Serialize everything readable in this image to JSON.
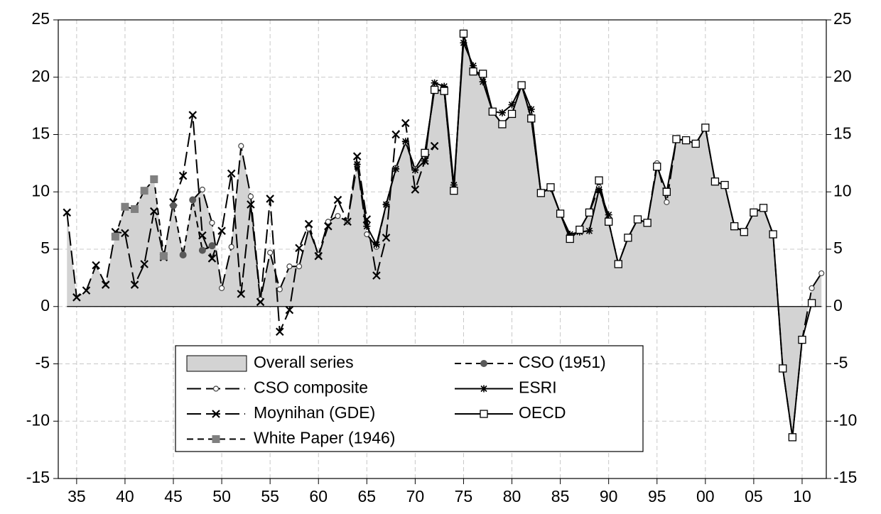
{
  "chart_data": {
    "type": "line",
    "xlim": [
      1933.1,
      2012.5
    ],
    "xticks": [
      {
        "value": 1935,
        "label": "35"
      },
      {
        "value": 1940,
        "label": "40"
      },
      {
        "value": 1945,
        "label": "45"
      },
      {
        "value": 1950,
        "label": "50"
      },
      {
        "value": 1955,
        "label": "55"
      },
      {
        "value": 1960,
        "label": "60"
      },
      {
        "value": 1965,
        "label": "65"
      },
      {
        "value": 1970,
        "label": "70"
      },
      {
        "value": 1975,
        "label": "75"
      },
      {
        "value": 1980,
        "label": "80"
      },
      {
        "value": 1985,
        "label": "85"
      },
      {
        "value": 1990,
        "label": "90"
      },
      {
        "value": 1995,
        "label": "95"
      },
      {
        "value": 2000,
        "label": "00"
      },
      {
        "value": 2005,
        "label": "05"
      },
      {
        "value": 2010,
        "label": "10"
      }
    ],
    "ylim": [
      -15,
      25
    ],
    "yticks": [
      -15,
      -10,
      -5,
      0,
      5,
      10,
      15,
      20,
      25
    ],
    "y2lim": [
      -15,
      25
    ],
    "y2ticks": [
      -15,
      -10,
      -5,
      0,
      5,
      10,
      15,
      20,
      25
    ],
    "grid": true,
    "series": [
      {
        "name": "Overall series",
        "kind": "area",
        "color": "#d3d3d3",
        "x": [
          1934,
          1935,
          1936,
          1937,
          1938,
          1939,
          1940,
          1941,
          1942,
          1943,
          1944,
          1945,
          1946,
          1947,
          1948,
          1949,
          1950,
          1951,
          1952,
          1953,
          1954,
          1955,
          1956,
          1957,
          1958,
          1959,
          1960,
          1961,
          1962,
          1963,
          1964,
          1965,
          1966,
          1967,
          1968,
          1969,
          1970,
          1971,
          1972,
          1973,
          1974,
          1975,
          1976,
          1977,
          1978,
          1979,
          1980,
          1981,
          1982,
          1983,
          1984,
          1985,
          1986,
          1987,
          1988,
          1989,
          1990,
          1991,
          1992,
          1993,
          1994,
          1995,
          1996,
          1997,
          1998,
          1999,
          2000,
          2001,
          2002,
          2003,
          2004,
          2005,
          2006,
          2007,
          2008,
          2009,
          2010,
          2011,
          2012
        ],
        "values": [
          8.2,
          0.8,
          1.4,
          3.6,
          2.0,
          6.2,
          8.7,
          8.5,
          10.1,
          11.1,
          4.4,
          8.8,
          4.6,
          9.3,
          10.2,
          7.3,
          1.6,
          5.2,
          14.0,
          9.6,
          0.6,
          4.7,
          1.5,
          3.5,
          3.5,
          6.8,
          4.5,
          7.4,
          7.9,
          7.4,
          12.4,
          6.3,
          5.2,
          8.9,
          12.1,
          14.3,
          12.0,
          13.4,
          18.9,
          18.8,
          10.1,
          23.8,
          20.5,
          20.3,
          17.0,
          15.9,
          16.8,
          19.3,
          16.4,
          9.9,
          10.4,
          8.1,
          5.9,
          6.7,
          8.2,
          11.0,
          7.4,
          3.7,
          6.0,
          7.6,
          7.3,
          12.2,
          10.0,
          14.6,
          14.5,
          14.2,
          15.6,
          10.9,
          10.6,
          7.0,
          6.5,
          8.2,
          8.6,
          6.3,
          -5.4,
          -11.4,
          -2.9,
          1.6,
          2.9
        ]
      },
      {
        "name": "CSO composite",
        "kind": "line",
        "color": "#000000",
        "dash": "long",
        "marker": "open-circle",
        "x": [
          1947,
          1948,
          1949,
          1950,
          1951,
          1952,
          1953,
          1954,
          1955,
          1956,
          1957,
          1958,
          1959,
          1960,
          1961,
          1962,
          1963,
          1964,
          1965,
          1966,
          1967,
          1968,
          1969,
          1970,
          1971,
          1972,
          1973,
          1974,
          1975,
          1976,
          1977,
          1978,
          1979,
          1980,
          1981,
          1982,
          1983,
          1984,
          1985,
          1986,
          1987,
          1988,
          1989,
          1990,
          1991,
          1992,
          1993,
          1994,
          1995,
          1996,
          1997,
          1998,
          1999,
          2000,
          2001,
          2002,
          2003,
          2004,
          2005,
          2006,
          2007,
          2008,
          2009,
          2010,
          2011,
          2012
        ],
        "values": [
          9.3,
          10.2,
          7.3,
          1.6,
          5.2,
          14.0,
          9.6,
          0.6,
          4.7,
          1.5,
          3.5,
          3.5,
          6.8,
          4.5,
          7.4,
          7.9,
          7.4,
          12.4,
          6.3,
          5.2,
          8.9,
          12.1,
          14.3,
          12.0,
          13.4,
          18.9,
          18.8,
          10.1,
          23.8,
          20.5,
          20.3,
          17.0,
          15.9,
          16.8,
          19.3,
          16.4,
          9.9,
          10.4,
          8.1,
          5.9,
          6.7,
          8.2,
          10.4,
          7.4,
          3.7,
          6.0,
          7.6,
          7.3,
          12.5,
          9.1,
          14.6,
          14.5,
          14.2,
          15.6,
          10.9,
          10.6,
          7.0,
          6.5,
          8.2,
          8.6,
          6.3,
          -5.4,
          -11.4,
          -2.9,
          1.6,
          2.9
        ]
      },
      {
        "name": "Moynihan (GDE)",
        "kind": "line",
        "color": "#000000",
        "dash": "long",
        "marker": "cross",
        "x": [
          1934,
          1935,
          1936,
          1937,
          1938,
          1939,
          1940,
          1941,
          1942,
          1943,
          1944,
          1945,
          1946,
          1947,
          1948,
          1949,
          1950,
          1951,
          1952,
          1953,
          1954,
          1955,
          1956,
          1957,
          1958,
          1959,
          1960,
          1961,
          1962,
          1963,
          1964,
          1965,
          1966,
          1967,
          1968,
          1969,
          1970,
          1971,
          1972
        ],
        "values": [
          8.2,
          0.8,
          1.4,
          3.6,
          1.9,
          6.5,
          6.4,
          1.9,
          3.7,
          8.3,
          4.3,
          9.1,
          11.4,
          16.7,
          6.2,
          4.2,
          6.6,
          11.6,
          1.1,
          8.9,
          0.4,
          9.4,
          -2.2,
          -0.3,
          5.1,
          7.2,
          4.4,
          7.0,
          9.3,
          7.4,
          13.1,
          7.6,
          2.7,
          6.0,
          15.0,
          16.0,
          10.2,
          12.7,
          14.0
        ]
      },
      {
        "name": "White Paper (1946)",
        "kind": "line",
        "color": "#808080",
        "dash": "short",
        "marker": "filled-square",
        "x": [
          1939,
          1940,
          1941,
          1942,
          1943,
          1944
        ],
        "values": [
          6.1,
          8.7,
          8.5,
          10.1,
          11.1,
          4.4
        ]
      },
      {
        "name": "CSO (1951)",
        "kind": "line",
        "color": "#595959",
        "dash": "short",
        "marker": "filled-circle",
        "x": [
          1945,
          1946,
          1947,
          1948,
          1949
        ],
        "values": [
          8.8,
          4.5,
          9.3,
          4.9,
          5.3
        ]
      },
      {
        "name": "ESRI",
        "kind": "line",
        "color": "#000000",
        "dash": "solid",
        "marker": "asterisk",
        "x": [
          1964,
          1965,
          1966,
          1967,
          1968,
          1969,
          1970,
          1971,
          1972,
          1973,
          1974,
          1975,
          1976,
          1977,
          1978,
          1979,
          1980,
          1981,
          1982,
          1983,
          1984,
          1985,
          1986,
          1987,
          1988,
          1989,
          1990
        ],
        "values": [
          12.4,
          7.0,
          5.4,
          8.9,
          12.0,
          14.4,
          11.9,
          12.7,
          19.5,
          19.2,
          10.6,
          23.0,
          21.0,
          19.6,
          17.0,
          16.9,
          17.6,
          19.3,
          17.2,
          9.9,
          10.3,
          8.1,
          6.3,
          6.5,
          6.6,
          10.2,
          8.0
        ]
      },
      {
        "name": "OECD",
        "kind": "line",
        "color": "#000000",
        "dash": "solid",
        "marker": "open-square",
        "x": [
          1971,
          1972,
          1973,
          1974,
          1975,
          1976,
          1977,
          1978,
          1979,
          1980,
          1981,
          1982,
          1983,
          1984,
          1985,
          1986,
          1987,
          1988,
          1989,
          1990,
          1991,
          1992,
          1993,
          1994,
          1995,
          1996,
          1997,
          1998,
          1999,
          2000,
          2001,
          2002,
          2003,
          2004,
          2005,
          2006,
          2007,
          2008,
          2009,
          2010,
          2011
        ],
        "values": [
          13.4,
          18.9,
          18.8,
          10.1,
          23.8,
          20.5,
          20.3,
          17.0,
          15.9,
          16.8,
          19.3,
          16.4,
          9.9,
          10.4,
          8.1,
          5.9,
          6.7,
          8.2,
          11.0,
          7.4,
          3.7,
          6.0,
          7.6,
          7.3,
          12.2,
          10.0,
          14.6,
          14.5,
          14.2,
          15.6,
          10.9,
          10.6,
          7.0,
          6.5,
          8.2,
          8.6,
          6.3,
          -5.4,
          -11.4,
          -2.9,
          0.3
        ]
      }
    ]
  }
}
